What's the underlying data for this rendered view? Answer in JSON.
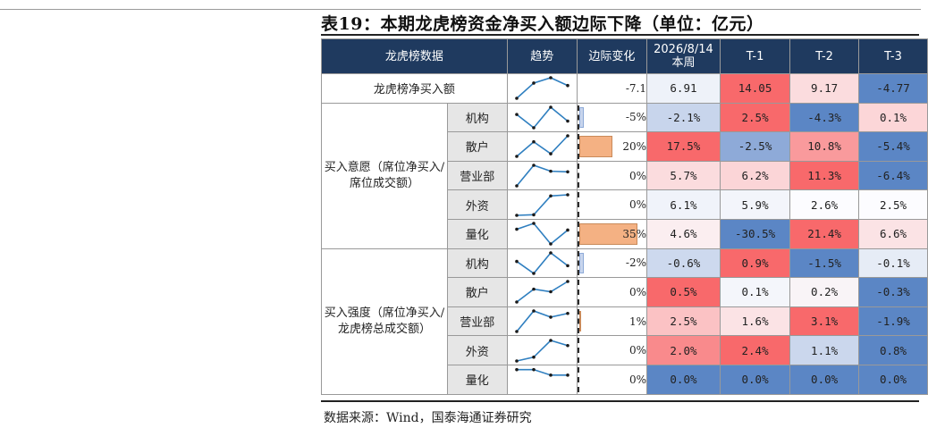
{
  "title": "表19：本期龙虎榜资金净买入额边际下降（单位：亿元）",
  "source": "数据来源：Wind，国泰海通证券研究",
  "headers": {
    "data": "龙虎榜数据",
    "trend": "趋势",
    "change": "边际变化",
    "current_line1": "2026/8/14",
    "current_line2": "本周",
    "t1": "T-1",
    "t2": "T-2",
    "t3": "T-3"
  },
  "net_buy": {
    "label": "龙虎榜净买入额",
    "change": "-7.1",
    "change_value": -7.1,
    "values": [
      "6.91",
      "14.05",
      "9.17",
      "-4.77"
    ],
    "colors": [
      "#eef2f9",
      "#f8696b",
      "#fbdcde",
      "#5b86c5"
    ],
    "trend": [
      -4.77,
      9.17,
      14.05,
      6.91
    ]
  },
  "groups": [
    {
      "label": "买入意愿（席位净买入/席位成交额）",
      "rows": [
        {
          "label": "机构",
          "change": "-5%",
          "change_value": -5,
          "values": [
            "-2.1%",
            "2.5%",
            "-4.3%",
            "0.1%"
          ],
          "colors": [
            "#c8d5ec",
            "#f8696b",
            "#5b86c5",
            "#fcd6d8"
          ],
          "trend": [
            0.1,
            -4.3,
            2.5,
            -2.1
          ]
        },
        {
          "label": "散户",
          "change": "20%",
          "change_value": 20,
          "values": [
            "17.5%",
            "-2.5%",
            "10.8%",
            "-5.4%"
          ],
          "colors": [
            "#f8696b",
            "#8eaad8",
            "#f99a9c",
            "#5b86c5"
          ],
          "trend": [
            -5.4,
            10.8,
            -2.5,
            17.5
          ]
        },
        {
          "label": "营业部",
          "change": "0%",
          "change_value": 0,
          "values": [
            "5.7%",
            "6.2%",
            "11.3%",
            "-6.4%"
          ],
          "colors": [
            "#fbdcde",
            "#fbd5d7",
            "#f8696b",
            "#5b86c5"
          ],
          "trend": [
            -6.4,
            11.3,
            6.2,
            5.7
          ]
        },
        {
          "label": "外资",
          "change": "0%",
          "change_value": 0,
          "values": [
            "6.1%",
            "5.9%",
            "2.6%",
            "2.5%"
          ],
          "colors": [
            "#f0f3fa",
            "#f3f5fb",
            "#fcfcff",
            "#fcfcff"
          ],
          "trend": [
            2.5,
            2.6,
            5.9,
            6.1
          ]
        },
        {
          "label": "量化",
          "change": "35%",
          "change_value": 35,
          "values": [
            "4.6%",
            "-30.5%",
            "21.4%",
            "6.6%"
          ],
          "colors": [
            "#fbeef0",
            "#5b86c5",
            "#f8696b",
            "#fbe3e5"
          ],
          "trend": [
            6.6,
            21.4,
            -30.5,
            4.6
          ]
        }
      ]
    },
    {
      "label": "买入强度（席位净买入/龙虎榜总成交额）",
      "rows": [
        {
          "label": "机构",
          "change": "-2%",
          "change_value": -2,
          "values": [
            "-0.6%",
            "0.9%",
            "-1.5%",
            "-0.1%"
          ],
          "colors": [
            "#cdd9ee",
            "#f8696b",
            "#5b86c5",
            "#e6ecf6"
          ],
          "trend": [
            -0.1,
            -1.5,
            0.9,
            -0.6
          ]
        },
        {
          "label": "散户",
          "change": "0%",
          "change_value": 0,
          "values": [
            "0.5%",
            "0.1%",
            "0.2%",
            "-0.3%"
          ],
          "colors": [
            "#f8696b",
            "#f4f6fb",
            "#f9f4f7",
            "#5b86c5"
          ],
          "trend": [
            -0.3,
            0.2,
            0.1,
            0.5
          ]
        },
        {
          "label": "营业部",
          "change": "1%",
          "change_value": 1,
          "values": [
            "2.5%",
            "1.6%",
            "3.1%",
            "-1.9%"
          ],
          "colors": [
            "#fbc2c4",
            "#fbe3e5",
            "#f8696b",
            "#5b86c5"
          ],
          "trend": [
            -1.9,
            3.1,
            1.6,
            2.5
          ]
        },
        {
          "label": "外资",
          "change": "0%",
          "change_value": 0,
          "values": [
            "2.0%",
            "2.4%",
            "1.1%",
            "0.8%"
          ],
          "colors": [
            "#f98a8c",
            "#f8696b",
            "#cbd7ed",
            "#5b86c5"
          ],
          "trend": [
            0.8,
            1.1,
            2.4,
            2.0
          ]
        },
        {
          "label": "量化",
          "change": "0%",
          "change_value": 0,
          "values": [
            "0.0%",
            "0.0%",
            "0.0%",
            "0.0%"
          ],
          "colors": [
            "#5b86c5",
            "#5b86c5",
            "#5b86c5",
            "#5b86c5"
          ],
          "trend": [
            0.0,
            0.0,
            0.0,
            0.0
          ]
        }
      ]
    }
  ],
  "colors": {
    "header_bg": "#1f3a5f",
    "sub_label_bg": "#e6e6e6",
    "change_bar": "#f4b183",
    "sparkline": "#2f7fc0"
  }
}
